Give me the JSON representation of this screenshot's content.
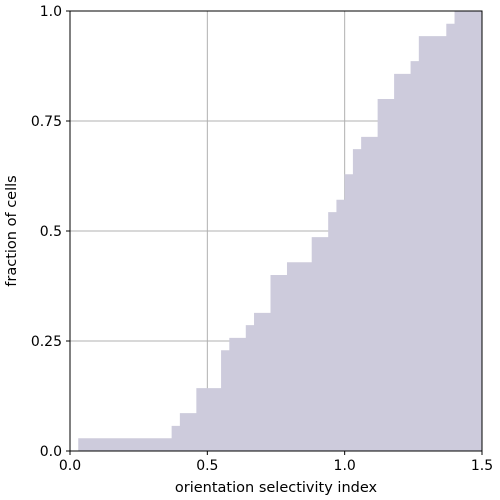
{
  "chart_data": {
    "type": "area",
    "subtype": "step-cdf",
    "title": "",
    "xlabel": "orientation selectivity index",
    "ylabel": "fraction of cells",
    "xlim": [
      0,
      1.5
    ],
    "ylim": [
      0,
      1.0
    ],
    "x_ticks": [
      0,
      0.5,
      1.0,
      1.5
    ],
    "x_tick_labels": [
      "0.0",
      "0.5",
      "1.0",
      "1.5"
    ],
    "y_ticks": [
      0,
      0.25,
      0.5,
      0.75,
      1.0
    ],
    "y_tick_labels": [
      "0.0",
      "0.25",
      "0.5",
      "0.75",
      "1.0"
    ],
    "grid": true,
    "fill_color": "#cdcbdc",
    "grid_color": "#b0b0b0",
    "steps": [
      {
        "x": 0.03,
        "y": 0.029
      },
      {
        "x": 0.37,
        "y": 0.057
      },
      {
        "x": 0.4,
        "y": 0.086
      },
      {
        "x": 0.46,
        "y": 0.143
      },
      {
        "x": 0.55,
        "y": 0.229
      },
      {
        "x": 0.58,
        "y": 0.257
      },
      {
        "x": 0.64,
        "y": 0.286
      },
      {
        "x": 0.67,
        "y": 0.314
      },
      {
        "x": 0.73,
        "y": 0.4
      },
      {
        "x": 0.79,
        "y": 0.429
      },
      {
        "x": 0.88,
        "y": 0.486
      },
      {
        "x": 0.94,
        "y": 0.543
      },
      {
        "x": 0.97,
        "y": 0.571
      },
      {
        "x": 1.0,
        "y": 0.629
      },
      {
        "x": 1.03,
        "y": 0.686
      },
      {
        "x": 1.06,
        "y": 0.714
      },
      {
        "x": 1.12,
        "y": 0.8
      },
      {
        "x": 1.18,
        "y": 0.857
      },
      {
        "x": 1.24,
        "y": 0.886
      },
      {
        "x": 1.27,
        "y": 0.943
      },
      {
        "x": 1.37,
        "y": 0.971
      },
      {
        "x": 1.4,
        "y": 1.0
      },
      {
        "x": 1.5,
        "y": 1.0
      }
    ]
  }
}
